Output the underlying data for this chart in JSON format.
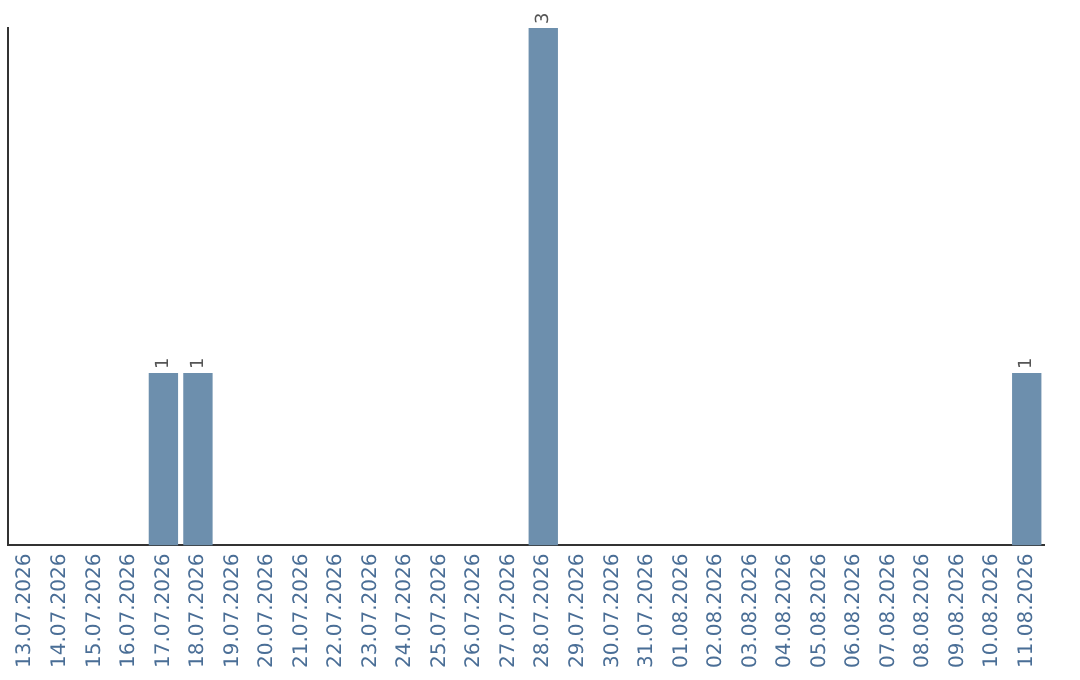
{
  "chart_data": {
    "type": "bar",
    "categories": [
      "13.07.2026",
      "14.07.2026",
      "15.07.2026",
      "16.07.2026",
      "17.07.2026",
      "18.07.2026",
      "19.07.2026",
      "20.07.2026",
      "21.07.2026",
      "22.07.2026",
      "23.07.2026",
      "24.07.2026",
      "25.07.2026",
      "26.07.2026",
      "27.07.2026",
      "28.07.2026",
      "29.07.2026",
      "30.07.2026",
      "31.07.2026",
      "01.08.2026",
      "02.08.2026",
      "03.08.2026",
      "04.08.2026",
      "05.08.2026",
      "06.08.2026",
      "07.08.2026",
      "08.08.2026",
      "09.08.2026",
      "10.08.2026",
      "11.08.2026"
    ],
    "values": [
      0,
      0,
      0,
      0,
      1,
      1,
      0,
      0,
      0,
      0,
      0,
      0,
      0,
      0,
      0,
      3,
      0,
      0,
      0,
      0,
      0,
      0,
      0,
      0,
      0,
      0,
      0,
      0,
      0,
      1
    ],
    "value_labels": [
      null,
      null,
      null,
      null,
      "1",
      "1",
      null,
      null,
      null,
      null,
      null,
      null,
      null,
      null,
      null,
      "3",
      null,
      null,
      null,
      null,
      null,
      null,
      null,
      null,
      null,
      null,
      null,
      null,
      null,
      "1"
    ],
    "color": "#6d8fad",
    "ylim": [
      0,
      3
    ],
    "tick_labels": "x",
    "grid": false,
    "legend": false
  }
}
